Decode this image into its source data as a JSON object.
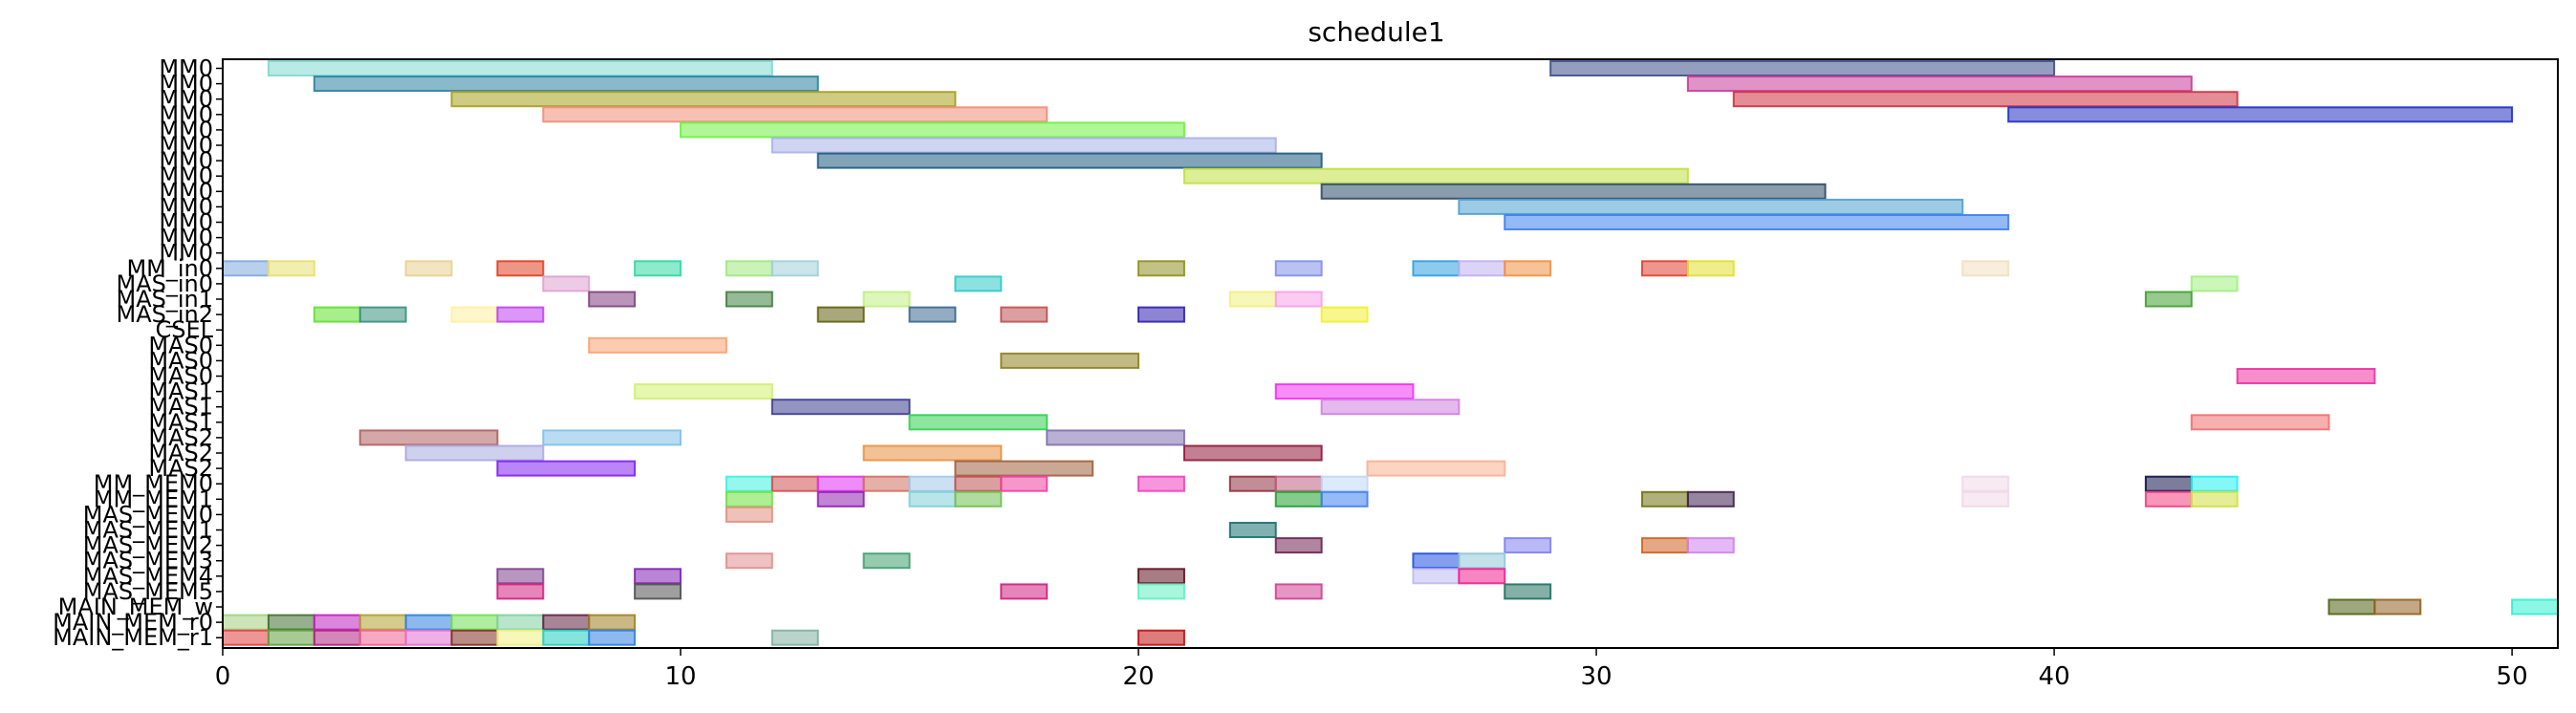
{
  "chart_data": {
    "type": "gantt",
    "title": "schedule1",
    "xlabel": "",
    "ylabel": "",
    "xlim": [
      0,
      51
    ],
    "x_ticks": [
      0,
      10,
      20,
      30,
      40,
      50
    ],
    "grid": false,
    "legend": "none",
    "rows": [
      "MM0",
      "MM0",
      "MM0",
      "MM0",
      "MM0",
      "MM0",
      "MM0",
      "MM0",
      "MM0",
      "MM0",
      "MM0",
      "MM0",
      "MM0",
      "MM_in0",
      "MAS_in0",
      "MAS_in1",
      "MAS_in2",
      "CSEL",
      "MAS0",
      "MAS0",
      "MAS0",
      "MAS1",
      "MAS1",
      "MAS1",
      "MAS2",
      "MAS2",
      "MAS2",
      "MM_MEM0",
      "MM_MEM1",
      "MAS_MEM0",
      "MAS_MEM1",
      "MAS_MEM2",
      "MAS_MEM3",
      "MAS_MEM4",
      "MAS_MEM5",
      "MAIN_MEM_w",
      "MAIN_MEM_r0",
      "MAIN_MEM_r1"
    ],
    "tasks": [
      {
        "row": 0,
        "start": 1,
        "end": 12,
        "color": "#7fd8d0"
      },
      {
        "row": 0,
        "start": 29,
        "end": 40,
        "color": "#3d4f8a"
      },
      {
        "row": 1,
        "start": 2,
        "end": 13,
        "color": "#2a7fa0"
      },
      {
        "row": 1,
        "start": 32,
        "end": 43,
        "color": "#c93a9a"
      },
      {
        "row": 2,
        "start": 5,
        "end": 16,
        "color": "#a6a01c"
      },
      {
        "row": 2,
        "start": 33,
        "end": 44,
        "color": "#d03040"
      },
      {
        "row": 3,
        "start": 7,
        "end": 18,
        "color": "#f08c78"
      },
      {
        "row": 3,
        "start": 39,
        "end": 50,
        "color": "#2030c0"
      },
      {
        "row": 4,
        "start": 10,
        "end": 21,
        "color": "#70f040"
      },
      {
        "row": 5,
        "start": 12,
        "end": 23,
        "color": "#a8b0e8"
      },
      {
        "row": 6,
        "start": 13,
        "end": 24,
        "color": "#1c5a80"
      },
      {
        "row": 7,
        "start": 21,
        "end": 32,
        "color": "#c0e040"
      },
      {
        "row": 8,
        "start": 24,
        "end": 35,
        "color": "#2c4a68"
      },
      {
        "row": 9,
        "start": 27,
        "end": 38,
        "color": "#4ca0d0"
      },
      {
        "row": 10,
        "start": 28,
        "end": 39,
        "color": "#3c80f0"
      },
      {
        "row": 13,
        "start": 0,
        "end": 1,
        "color": "#80a8e0"
      },
      {
        "row": 13,
        "start": 1,
        "end": 2,
        "color": "#e8e070"
      },
      {
        "row": 13,
        "start": 4,
        "end": 5,
        "color": "#e8d090"
      },
      {
        "row": 13,
        "start": 6,
        "end": 7,
        "color": "#e04020"
      },
      {
        "row": 13,
        "start": 9,
        "end": 10,
        "color": "#30d8a0"
      },
      {
        "row": 13,
        "start": 11,
        "end": 12,
        "color": "#a0e880"
      },
      {
        "row": 13,
        "start": 12,
        "end": 13,
        "color": "#a0d0d8"
      },
      {
        "row": 13,
        "start": 20,
        "end": 21,
        "color": "#909020"
      },
      {
        "row": 13,
        "start": 23,
        "end": 24,
        "color": "#8090e8"
      },
      {
        "row": 13,
        "start": 26,
        "end": 27,
        "color": "#30a0e0"
      },
      {
        "row": 13,
        "start": 27,
        "end": 28,
        "color": "#c0b0f0"
      },
      {
        "row": 13,
        "start": 28,
        "end": 29,
        "color": "#f09040"
      },
      {
        "row": 13,
        "start": 31,
        "end": 32,
        "color": "#e04030"
      },
      {
        "row": 13,
        "start": 32,
        "end": 33,
        "color": "#e0e030"
      },
      {
        "row": 13,
        "start": 38,
        "end": 39,
        "color": "#f0e0c0"
      },
      {
        "row": 14,
        "start": 7,
        "end": 8,
        "color": "#e0a0d0"
      },
      {
        "row": 14,
        "start": 16,
        "end": 17,
        "color": "#30c8c8"
      },
      {
        "row": 14,
        "start": 43,
        "end": 44,
        "color": "#a0f080"
      },
      {
        "row": 15,
        "start": 8,
        "end": 9,
        "color": "#804080"
      },
      {
        "row": 15,
        "start": 11,
        "end": 12,
        "color": "#408040"
      },
      {
        "row": 15,
        "start": 14,
        "end": 15,
        "color": "#c0f080"
      },
      {
        "row": 15,
        "start": 22,
        "end": 23,
        "color": "#f0f080"
      },
      {
        "row": 15,
        "start": 23,
        "end": 24,
        "color": "#f8a0e8"
      },
      {
        "row": 15,
        "start": 42,
        "end": 43,
        "color": "#40a030"
      },
      {
        "row": 16,
        "start": 2,
        "end": 3,
        "color": "#60e030"
      },
      {
        "row": 16,
        "start": 3,
        "end": 4,
        "color": "#3a9080"
      },
      {
        "row": 16,
        "start": 5,
        "end": 6,
        "color": "#fff0a0"
      },
      {
        "row": 16,
        "start": 6,
        "end": 7,
        "color": "#c040f0"
      },
      {
        "row": 16,
        "start": 13,
        "end": 14,
        "color": "#606010"
      },
      {
        "row": 16,
        "start": 15,
        "end": 16,
        "color": "#3a6890"
      },
      {
        "row": 16,
        "start": 17,
        "end": 18,
        "color": "#c05050"
      },
      {
        "row": 16,
        "start": 20,
        "end": 21,
        "color": "#3020b0"
      },
      {
        "row": 16,
        "start": 24,
        "end": 25,
        "color": "#f0f030"
      },
      {
        "row": 18,
        "start": 8,
        "end": 11,
        "color": "#fca070"
      },
      {
        "row": 19,
        "start": 17,
        "end": 20,
        "color": "#908020"
      },
      {
        "row": 20,
        "start": 44,
        "end": 47,
        "color": "#f030a0"
      },
      {
        "row": 21,
        "start": 9,
        "end": 12,
        "color": "#d0f070"
      },
      {
        "row": 21,
        "start": 23,
        "end": 26,
        "color": "#f030f0"
      },
      {
        "row": 22,
        "start": 12,
        "end": 15,
        "color": "#3c3c90"
      },
      {
        "row": 22,
        "start": 24,
        "end": 27,
        "color": "#d080e0"
      },
      {
        "row": 23,
        "start": 15,
        "end": 18,
        "color": "#30d050"
      },
      {
        "row": 23,
        "start": 43,
        "end": 46,
        "color": "#f07070"
      },
      {
        "row": 24,
        "start": 3,
        "end": 6,
        "color": "#b06060"
      },
      {
        "row": 24,
        "start": 7,
        "end": 10,
        "color": "#80c0e8"
      },
      {
        "row": 24,
        "start": 18,
        "end": 21,
        "color": "#8070b0"
      },
      {
        "row": 25,
        "start": 4,
        "end": 7,
        "color": "#a8a8e0"
      },
      {
        "row": 25,
        "start": 14,
        "end": 17,
        "color": "#e89040"
      },
      {
        "row": 25,
        "start": 21,
        "end": 24,
        "color": "#901838"
      },
      {
        "row": 26,
        "start": 6,
        "end": 9,
        "color": "#8020f0"
      },
      {
        "row": 26,
        "start": 16,
        "end": 19,
        "color": "#a06040"
      },
      {
        "row": 26,
        "start": 25,
        "end": 28,
        "color": "#f8b090"
      },
      {
        "row": 27,
        "start": 11,
        "end": 12,
        "color": "#40f0e0"
      },
      {
        "row": 27,
        "start": 12,
        "end": 13,
        "color": "#d05050"
      },
      {
        "row": 27,
        "start": 13,
        "end": 14,
        "color": "#e030f0"
      },
      {
        "row": 27,
        "start": 14,
        "end": 15,
        "color": "#d07060"
      },
      {
        "row": 27,
        "start": 15,
        "end": 16,
        "color": "#a0c8e8"
      },
      {
        "row": 27,
        "start": 16,
        "end": 17,
        "color": "#c05050"
      },
      {
        "row": 27,
        "start": 17,
        "end": 18,
        "color": "#f040a0"
      },
      {
        "row": 27,
        "start": 20,
        "end": 21,
        "color": "#f040c0"
      },
      {
        "row": 27,
        "start": 22,
        "end": 23,
        "color": "#903040"
      },
      {
        "row": 27,
        "start": 23,
        "end": 24,
        "color": "#c06080"
      },
      {
        "row": 27,
        "start": 24,
        "end": 25,
        "color": "#c0d8f8"
      },
      {
        "row": 27,
        "start": 38,
        "end": 39,
        "color": "#f0d8e8"
      },
      {
        "row": 27,
        "start": 42,
        "end": 43,
        "color": "#101048"
      },
      {
        "row": 27,
        "start": 43,
        "end": 44,
        "color": "#20f0f0"
      },
      {
        "row": 28,
        "start": 11,
        "end": 12,
        "color": "#70e040"
      },
      {
        "row": 28,
        "start": 13,
        "end": 14,
        "color": "#9020b0"
      },
      {
        "row": 28,
        "start": 15,
        "end": 16,
        "color": "#80d0d8"
      },
      {
        "row": 28,
        "start": 16,
        "end": 17,
        "color": "#70c050"
      },
      {
        "row": 28,
        "start": 23,
        "end": 24,
        "color": "#20a030"
      },
      {
        "row": 28,
        "start": 24,
        "end": 25,
        "color": "#4080f0"
      },
      {
        "row": 28,
        "start": 31,
        "end": 32,
        "color": "#707010"
      },
      {
        "row": 28,
        "start": 32,
        "end": 33,
        "color": "#402050"
      },
      {
        "row": 28,
        "start": 38,
        "end": 39,
        "color": "#f0d8e8"
      },
      {
        "row": 28,
        "start": 42,
        "end": 43,
        "color": "#f04080"
      },
      {
        "row": 28,
        "start": 43,
        "end": 44,
        "color": "#d0e040"
      },
      {
        "row": 29,
        "start": 11,
        "end": 12,
        "color": "#e09080"
      },
      {
        "row": 30,
        "start": 22,
        "end": 23,
        "color": "#1a7070"
      },
      {
        "row": 31,
        "start": 23,
        "end": 24,
        "color": "#702050"
      },
      {
        "row": 31,
        "start": 28,
        "end": 29,
        "color": "#8080f0"
      },
      {
        "row": 31,
        "start": 31,
        "end": 32,
        "color": "#d06020"
      },
      {
        "row": 31,
        "start": 32,
        "end": 33,
        "color": "#d080f0"
      },
      {
        "row": 32,
        "start": 11,
        "end": 12,
        "color": "#e09090"
      },
      {
        "row": 32,
        "start": 14,
        "end": 15,
        "color": "#40a070"
      },
      {
        "row": 32,
        "start": 26,
        "end": 27,
        "color": "#2050e0"
      },
      {
        "row": 32,
        "start": 27,
        "end": 28,
        "color": "#90c8d8"
      },
      {
        "row": 33,
        "start": 6,
        "end": 7,
        "color": "#804090"
      },
      {
        "row": 33,
        "start": 9,
        "end": 10,
        "color": "#8020b0"
      },
      {
        "row": 33,
        "start": 20,
        "end": 21,
        "color": "#601020"
      },
      {
        "row": 33,
        "start": 26,
        "end": 27,
        "color": "#c0b8f0"
      },
      {
        "row": 33,
        "start": 27,
        "end": 28,
        "color": "#f02090"
      },
      {
        "row": 34,
        "start": 6,
        "end": 7,
        "color": "#d02080"
      },
      {
        "row": 34,
        "start": 9,
        "end": 10,
        "color": "#505050"
      },
      {
        "row": 34,
        "start": 17,
        "end": 18,
        "color": "#d02080"
      },
      {
        "row": 34,
        "start": 20,
        "end": 21,
        "color": "#60f0c0"
      },
      {
        "row": 34,
        "start": 23,
        "end": 24,
        "color": "#d04090"
      },
      {
        "row": 34,
        "start": 28,
        "end": 29,
        "color": "#207060"
      },
      {
        "row": 35,
        "start": 46,
        "end": 47,
        "color": "#506010"
      },
      {
        "row": 35,
        "start": 47,
        "end": 48,
        "color": "#906020"
      },
      {
        "row": 35,
        "start": 50,
        "end": 51,
        "color": "#30f0d0"
      },
      {
        "row": 36,
        "start": 0,
        "end": 1,
        "color": "#a0d080"
      },
      {
        "row": 36,
        "start": 1,
        "end": 2,
        "color": "#407030"
      },
      {
        "row": 36,
        "start": 2,
        "end": 3,
        "color": "#c020c0"
      },
      {
        "row": 36,
        "start": 3,
        "end": 4,
        "color": "#b0a030"
      },
      {
        "row": 36,
        "start": 4,
        "end": 5,
        "color": "#3080e0"
      },
      {
        "row": 36,
        "start": 5,
        "end": 6,
        "color": "#70e050"
      },
      {
        "row": 36,
        "start": 6,
        "end": 7,
        "color": "#80d0a0"
      },
      {
        "row": 36,
        "start": 7,
        "end": 8,
        "color": "#602040"
      },
      {
        "row": 36,
        "start": 8,
        "end": 9,
        "color": "#a08020"
      },
      {
        "row": 37,
        "start": 0,
        "end": 1,
        "color": "#e04040"
      },
      {
        "row": 37,
        "start": 1,
        "end": 2,
        "color": "#60a040"
      },
      {
        "row": 37,
        "start": 2,
        "end": 3,
        "color": "#b02080"
      },
      {
        "row": 37,
        "start": 3,
        "end": 4,
        "color": "#f06090"
      },
      {
        "row": 37,
        "start": 4,
        "end": 5,
        "color": "#e070d0"
      },
      {
        "row": 37,
        "start": 5,
        "end": 6,
        "color": "#803020"
      },
      {
        "row": 37,
        "start": 6,
        "end": 7,
        "color": "#f0f080"
      },
      {
        "row": 37,
        "start": 7,
        "end": 8,
        "color": "#20d0c0"
      },
      {
        "row": 37,
        "start": 8,
        "end": 9,
        "color": "#3080e0"
      },
      {
        "row": 37,
        "start": 12,
        "end": 13,
        "color": "#80b0a0"
      },
      {
        "row": 37,
        "start": 20,
        "end": 21,
        "color": "#c01010"
      }
    ]
  }
}
